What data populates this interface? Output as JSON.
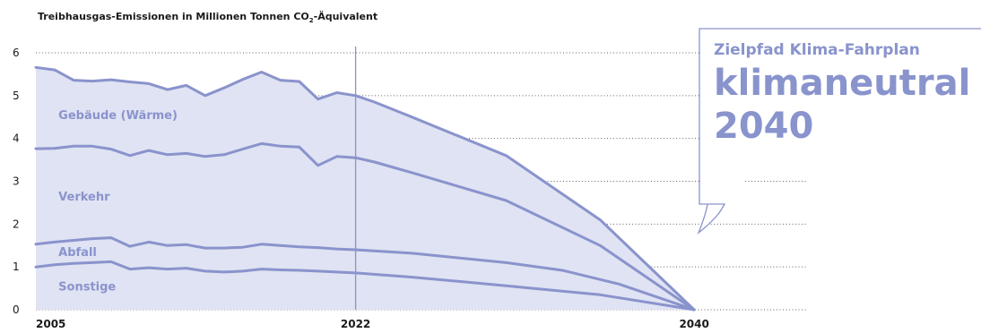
{
  "title": {
    "prefix": "Treibhausgas-Emissionen in Millionen Tonnen CO",
    "subscript": "2",
    "suffix": "-Äquivalent"
  },
  "callout": {
    "subtitle": "Zielpfad Klima-Fahrplan",
    "headline_line1": "klimaneutral",
    "headline_line2": "2040"
  },
  "colors": {
    "line": "#8a93cc",
    "fill": "#dfe3f3",
    "label": "#8a93cc",
    "grid": "#666666",
    "axis_text": "#1a1a1a"
  },
  "chart_data": {
    "type": "area",
    "title": "Treibhausgas-Emissionen in Millionen Tonnen CO2-Äquivalent",
    "xlabel": "",
    "ylabel": "",
    "xlim": [
      2005,
      2046
    ],
    "ylim": [
      0,
      6
    ],
    "y_ticks": [
      "0",
      "1",
      "2",
      "3",
      "4",
      "5",
      "6"
    ],
    "x_ticks": [
      "2005",
      "2022",
      "2040"
    ],
    "marker_year": 2022,
    "grid": true,
    "stacked": true,
    "series": [
      {
        "name": "Sonstige",
        "points": [
          [
            2005,
            1.0
          ],
          [
            2006,
            1.05
          ],
          [
            2007,
            1.08
          ],
          [
            2008,
            1.1
          ],
          [
            2009,
            1.12
          ],
          [
            2010,
            0.95
          ],
          [
            2011,
            0.98
          ],
          [
            2012,
            0.95
          ],
          [
            2013,
            0.97
          ],
          [
            2014,
            0.9
          ],
          [
            2015,
            0.88
          ],
          [
            2016,
            0.9
          ],
          [
            2017,
            0.95
          ],
          [
            2018,
            0.93
          ],
          [
            2019,
            0.92
          ],
          [
            2020,
            0.9
          ],
          [
            2021,
            0.88
          ],
          [
            2022,
            0.86
          ],
          [
            2025,
            0.76
          ],
          [
            2030,
            0.56
          ],
          [
            2035,
            0.35
          ],
          [
            2040,
            0.0
          ]
        ]
      },
      {
        "name": "Abfall",
        "points": [
          [
            2005,
            1.53
          ],
          [
            2006,
            1.58
          ],
          [
            2007,
            1.62
          ],
          [
            2008,
            1.66
          ],
          [
            2009,
            1.68
          ],
          [
            2010,
            1.48
          ],
          [
            2011,
            1.58
          ],
          [
            2012,
            1.5
          ],
          [
            2013,
            1.52
          ],
          [
            2014,
            1.44
          ],
          [
            2015,
            1.44
          ],
          [
            2016,
            1.46
          ],
          [
            2017,
            1.53
          ],
          [
            2018,
            1.5
          ],
          [
            2019,
            1.47
          ],
          [
            2020,
            1.45
          ],
          [
            2021,
            1.42
          ],
          [
            2022,
            1.4
          ],
          [
            2025,
            1.32
          ],
          [
            2030,
            1.1
          ],
          [
            2033,
            0.92
          ],
          [
            2036,
            0.6
          ],
          [
            2040,
            0.0
          ]
        ]
      },
      {
        "name": "Verkehr",
        "points": [
          [
            2005,
            3.76
          ],
          [
            2006,
            3.77
          ],
          [
            2007,
            3.82
          ],
          [
            2008,
            3.82
          ],
          [
            2009,
            3.75
          ],
          [
            2010,
            3.6
          ],
          [
            2011,
            3.72
          ],
          [
            2012,
            3.62
          ],
          [
            2013,
            3.65
          ],
          [
            2014,
            3.58
          ],
          [
            2015,
            3.62
          ],
          [
            2016,
            3.75
          ],
          [
            2017,
            3.88
          ],
          [
            2018,
            3.82
          ],
          [
            2019,
            3.8
          ],
          [
            2020,
            3.37
          ],
          [
            2021,
            3.58
          ],
          [
            2022,
            3.55
          ],
          [
            2023,
            3.45
          ],
          [
            2025,
            3.2
          ],
          [
            2030,
            2.55
          ],
          [
            2035,
            1.5
          ],
          [
            2040,
            0.0
          ]
        ]
      },
      {
        "name": "Gebäude (Wärme)",
        "points": [
          [
            2005,
            5.66
          ],
          [
            2006,
            5.6
          ],
          [
            2007,
            5.36
          ],
          [
            2008,
            5.34
          ],
          [
            2009,
            5.37
          ],
          [
            2010,
            5.32
          ],
          [
            2011,
            5.28
          ],
          [
            2012,
            5.14
          ],
          [
            2013,
            5.24
          ],
          [
            2014,
            5.0
          ],
          [
            2015,
            5.18
          ],
          [
            2016,
            5.38
          ],
          [
            2017,
            5.55
          ],
          [
            2018,
            5.36
          ],
          [
            2019,
            5.33
          ],
          [
            2020,
            4.92
          ],
          [
            2021,
            5.07
          ],
          [
            2022,
            5.0
          ],
          [
            2023,
            4.85
          ],
          [
            2025,
            4.5
          ],
          [
            2030,
            3.6
          ],
          [
            2035,
            2.1
          ],
          [
            2040,
            0.0
          ]
        ]
      }
    ],
    "series_labels": [
      {
        "name": "Gebäude (Wärme)",
        "x": 2006.2,
        "y": 4.45
      },
      {
        "name": "Verkehr",
        "x": 2006.2,
        "y": 2.55
      },
      {
        "name": "Abfall",
        "x": 2006.2,
        "y": 1.25
      },
      {
        "name": "Sonstige",
        "x": 2006.2,
        "y": 0.45
      }
    ]
  }
}
